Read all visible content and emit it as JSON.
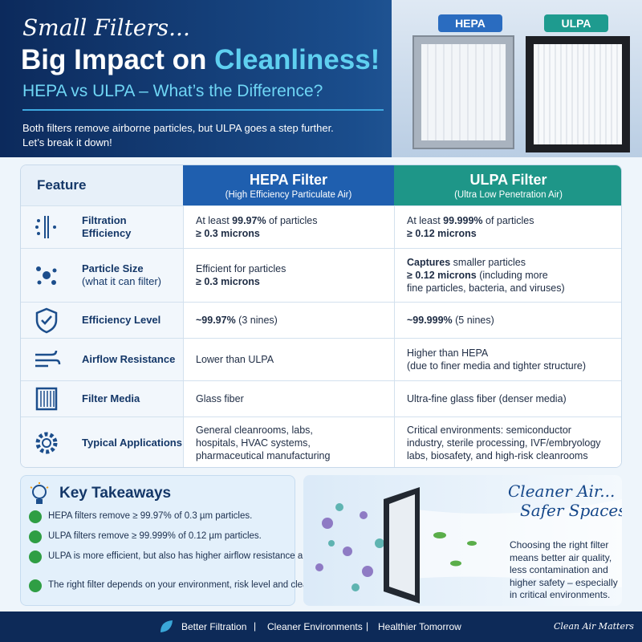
{
  "header": {
    "script_title": "Small Filters...",
    "title": "Big Impact on ",
    "title_highlight": "Cleanliness!",
    "subtitle": "HEPA vs ULPA – What’s the Difference?",
    "intro": [
      "Both filters remove airborne particles, but ULPA goes a step further.",
      "Let’s break it down!"
    ],
    "image_labels": [
      "HEPA",
      "ULPA"
    ]
  },
  "table": {
    "columns": [
      {
        "title": "Feature"
      },
      {
        "title": "HEPA Filter",
        "subtitle": "(High Efficiency Particulate Air)"
      },
      {
        "title": "ULPA Filter",
        "subtitle": "(Ultra Low Penetration Air)"
      }
    ],
    "rows": [
      {
        "feature": [
          {
            "text": "Filtration",
            "bold": true
          },
          {
            "text": "Efficiency",
            "bold": true
          }
        ],
        "hepa": [
          [
            {
              "text": "At least "
            },
            {
              "text": "99.97%",
              "bold": true
            },
            {
              "text": " of particles"
            }
          ],
          [
            {
              "text": "≥ 0.3 microns",
              "bold": true
            }
          ]
        ],
        "ulpa": [
          [
            {
              "text": "At least "
            },
            {
              "text": "99.999%",
              "bold": true
            },
            {
              "text": " of particles"
            }
          ],
          [
            {
              "text": "≥ 0.12 microns",
              "bold": true
            }
          ]
        ]
      },
      {
        "feature": [
          {
            "text": "Particle Size",
            "bold": true
          },
          {
            "text": "(what it can filter)"
          }
        ],
        "hepa": [
          [
            {
              "text": "Efficient for particles"
            }
          ],
          [
            {
              "text": "≥ 0.3 microns",
              "bold": true
            }
          ]
        ],
        "ulpa": [
          [
            {
              "text": "Captures",
              "bold": true
            },
            {
              "text": " smaller particles"
            }
          ],
          [
            {
              "text": "≥ 0.12 microns",
              "bold": true
            },
            {
              "text": " (including more"
            }
          ],
          [
            {
              "text": "fine particles, bacteria, and viruses)"
            }
          ]
        ]
      },
      {
        "feature": [
          {
            "text": "Efficiency Level",
            "bold": true
          }
        ],
        "hepa": [
          [
            {
              "text": "~99.97%",
              "bold": true
            },
            {
              "text": " (3 nines)"
            }
          ]
        ],
        "ulpa": [
          [
            {
              "text": "~99.999%",
              "bold": true
            },
            {
              "text": " (5 nines)"
            }
          ]
        ]
      },
      {
        "feature": [
          {
            "text": "Airflow Resistance",
            "bold": true
          }
        ],
        "hepa": [
          [
            {
              "text": "Lower than ULPA"
            }
          ]
        ],
        "ulpa": [
          [
            {
              "text": "Higher than HEPA"
            }
          ],
          [
            {
              "text": "(due to finer media and tighter structure)"
            }
          ]
        ]
      },
      {
        "feature": [
          {
            "text": "Filter Media",
            "bold": true
          }
        ],
        "hepa": [
          [
            {
              "text": "Glass fiber"
            }
          ]
        ],
        "ulpa": [
          [
            {
              "text": "Ultra-fine glass fiber (denser media)"
            }
          ]
        ]
      },
      {
        "feature": [
          {
            "text": "Typical Applications",
            "bold": true
          }
        ],
        "hepa": [
          [
            {
              "text": "General cleanrooms, labs,"
            }
          ],
          [
            {
              "text": "hospitals, HVAC systems,"
            }
          ],
          [
            {
              "text": "pharmaceutical manufacturing"
            }
          ]
        ],
        "ulpa": [
          [
            {
              "text": "Critical environments: semiconductor"
            }
          ],
          [
            {
              "text": "industry, sterile processing, IVF/embryology"
            }
          ],
          [
            {
              "text": "labs, biosafety, and high-risk cleanrooms"
            }
          ]
        ]
      }
    ]
  },
  "takeaways": {
    "title": "Key Takeaways",
    "items": [
      "HEPA filters remove ≥ 99.97% of 0.3 µm particles.",
      "ULPA filters remove ≥ 99.999% of 0.12 µm particles.",
      "ULPA is more efficient, but also has higher airflow resistance and cost.",
      "The right filter depends on your environment, risk level and cleanliness requirements."
    ]
  },
  "promo": {
    "headline": [
      "Cleaner Air...",
      "Safer Spaces!"
    ],
    "text": [
      "Choosing the right filter",
      "means better air quality,",
      "less contamination and",
      "higher safety – especially",
      "in critical environments."
    ]
  },
  "footer": {
    "items": [
      "Better Filtration",
      "Cleaner Environments",
      "Healthier Tomorrow"
    ],
    "tagline": "Clean Air Matters"
  }
}
